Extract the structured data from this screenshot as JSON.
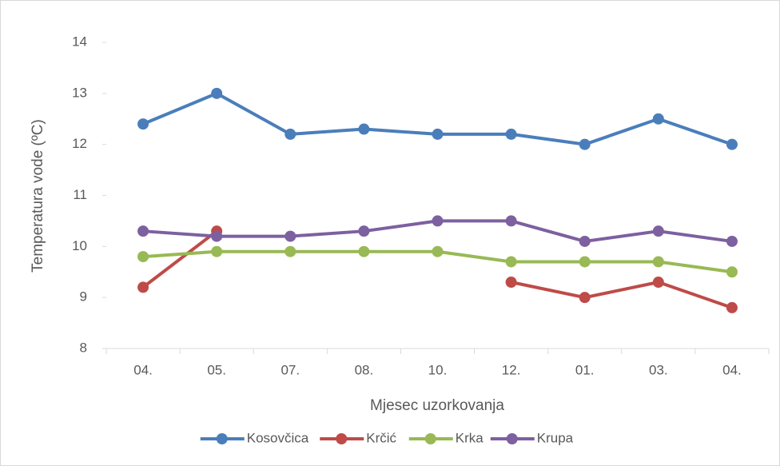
{
  "chart_data": {
    "type": "line",
    "x_label": "Mjesec uzorkovanja",
    "y_label": "Temperatura  vode (ºC)",
    "categories": [
      "04.",
      "05.",
      "07.",
      "08.",
      "10.",
      "12.",
      "01.",
      "03.",
      "04."
    ],
    "series": [
      {
        "name": "Kosovčica",
        "color": "#4a7ebb",
        "values": [
          12.4,
          13.0,
          12.2,
          12.3,
          12.2,
          12.2,
          12.0,
          12.5,
          12.0
        ]
      },
      {
        "name": "Krčić",
        "color": "#be4b48",
        "values": [
          9.2,
          10.3,
          null,
          null,
          null,
          9.3,
          9.0,
          9.3,
          8.8
        ]
      },
      {
        "name": "Krka",
        "color": "#98b954",
        "values": [
          9.8,
          9.9,
          9.9,
          9.9,
          9.9,
          9.7,
          9.7,
          9.7,
          9.5
        ]
      },
      {
        "name": "Krupa",
        "color": "#7d60a0",
        "values": [
          10.3,
          10.2,
          10.2,
          10.3,
          10.5,
          10.5,
          10.1,
          10.3,
          10.1
        ]
      }
    ],
    "ylim": [
      8,
      14
    ],
    "yticks": [
      8,
      9,
      10,
      11,
      12,
      13,
      14
    ],
    "legend": "bottom"
  }
}
